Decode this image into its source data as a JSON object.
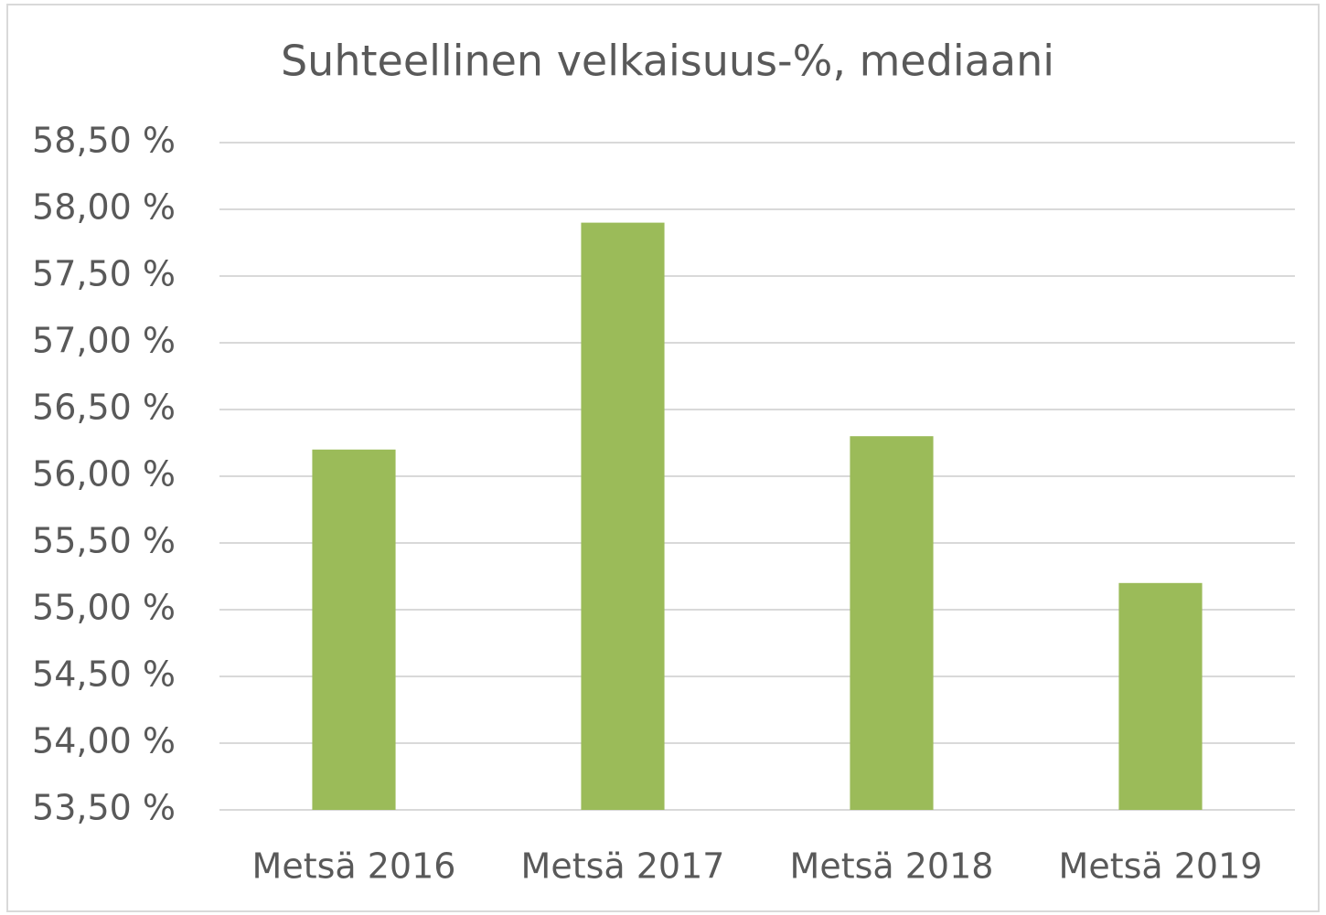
{
  "chart_data": {
    "type": "bar",
    "title": "Suhteellinen velkaisuus-%, mediaani",
    "categories": [
      "Metsä 2016",
      "Metsä 2017",
      "Metsä 2018",
      "Metsä 2019"
    ],
    "values": [
      56.2,
      57.9,
      56.3,
      55.2
    ],
    "color": "#9bbb59",
    "ylim": [
      53.5,
      58.5
    ],
    "yticks": [
      {
        "value": 53.5,
        "label": "53,50 %"
      },
      {
        "value": 54,
        "label": "54,00 %"
      },
      {
        "value": 54.5,
        "label": "54,50 %"
      },
      {
        "value": 55,
        "label": "55,00 %"
      },
      {
        "value": 55.5,
        "label": "55,50 %"
      },
      {
        "value": 56,
        "label": "56,00 %"
      },
      {
        "value": 56.5,
        "label": "56,50 %"
      },
      {
        "value": 57,
        "label": "57,00 %"
      },
      {
        "value": 57.5,
        "label": "57,50 %"
      },
      {
        "value": 58,
        "label": "58,00 %"
      },
      {
        "value": 58.5,
        "label": "58,50 %"
      }
    ],
    "grid": true
  }
}
